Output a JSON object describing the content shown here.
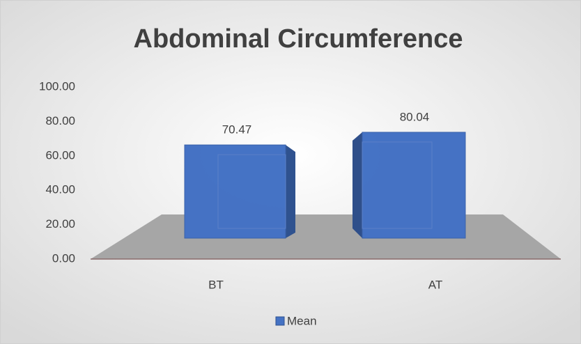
{
  "chart_data": {
    "type": "bar3d",
    "title": "Abdominal Circumference",
    "categories": [
      "BT",
      "AT"
    ],
    "series": [
      {
        "name": "Mean",
        "color": "#4472c4",
        "values": [
          70.47,
          80.04
        ]
      }
    ],
    "ylim": [
      0,
      100
    ],
    "yticks": [
      {
        "value": 0,
        "label": "0.00"
      },
      {
        "value": 20,
        "label": "20.00"
      },
      {
        "value": 40,
        "label": "40.00"
      },
      {
        "value": 60,
        "label": "60.00"
      },
      {
        "value": 80,
        "label": "80.00"
      },
      {
        "value": 100,
        "label": "100.00"
      }
    ],
    "legend": "bottom"
  }
}
